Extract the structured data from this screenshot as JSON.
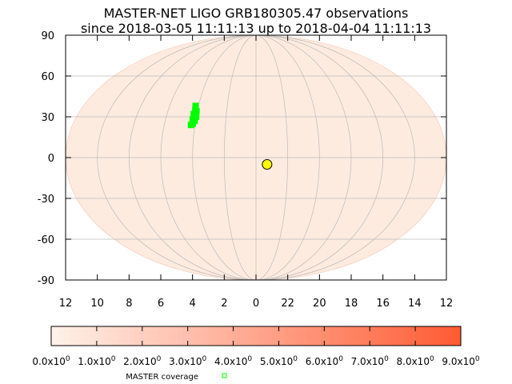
{
  "chart_data": {
    "type": "scatter",
    "projection": "mollweide",
    "title_line1": "MASTER-NET LIGO GRB180305.47 observations",
    "title_line2": "since 2018-03-05 11:11:13 up to 2018-04-04 11:11:13",
    "y_ticks": [
      "90",
      "60",
      "30",
      "0",
      "-30",
      "-60",
      "-90"
    ],
    "y_tick_values": [
      90,
      60,
      30,
      0,
      -30,
      -60,
      -90
    ],
    "x_tick_labels": [
      "12",
      "10",
      "8",
      "6",
      "4",
      "2",
      "0",
      "22",
      "20",
      "18",
      "16",
      "14",
      "12"
    ],
    "ylim": [
      -90,
      90
    ],
    "grid": true,
    "meridian_step_hours": 2,
    "colors": {
      "sky_fill": "#fdebdf",
      "grid": "#bbbbbb",
      "coverage": "#00ff00",
      "source": "#ffff00"
    },
    "colorbar": {
      "tick_labels": [
        "0.0x10^0",
        "1.0x10^0",
        "2.0x10^0",
        "3.0x10^0",
        "4.0x10^0",
        "5.0x10^0",
        "6.0x10^0",
        "7.0x10^0",
        "8.0x10^0",
        "9.0x10^0"
      ],
      "min": 0,
      "max": 9,
      "color_low": "#fff2ea",
      "color_high": "#ff5a32"
    },
    "legend": {
      "label": "MASTER coverage"
    },
    "series": [
      {
        "name": "MASTER coverage",
        "points": [
          {
            "ra_h": 4.2,
            "dec": 38
          },
          {
            "ra_h": 4.15,
            "dec": 35
          },
          {
            "ra_h": 4.2,
            "dec": 32
          },
          {
            "ra_h": 4.1,
            "dec": 30
          },
          {
            "ra_h": 4.2,
            "dec": 28
          },
          {
            "ra_h": 4.15,
            "dec": 25
          },
          {
            "ra_h": 4.25,
            "dec": 24
          },
          {
            "ra_h": 4.05,
            "dec": 34
          },
          {
            "ra_h": 4.0,
            "dec": 30
          },
          {
            "ra_h": 4.05,
            "dec": 27
          }
        ]
      },
      {
        "name": "GRB180305.47",
        "points": [
          {
            "ra_h": 23.3,
            "dec": -5
          }
        ]
      }
    ]
  }
}
